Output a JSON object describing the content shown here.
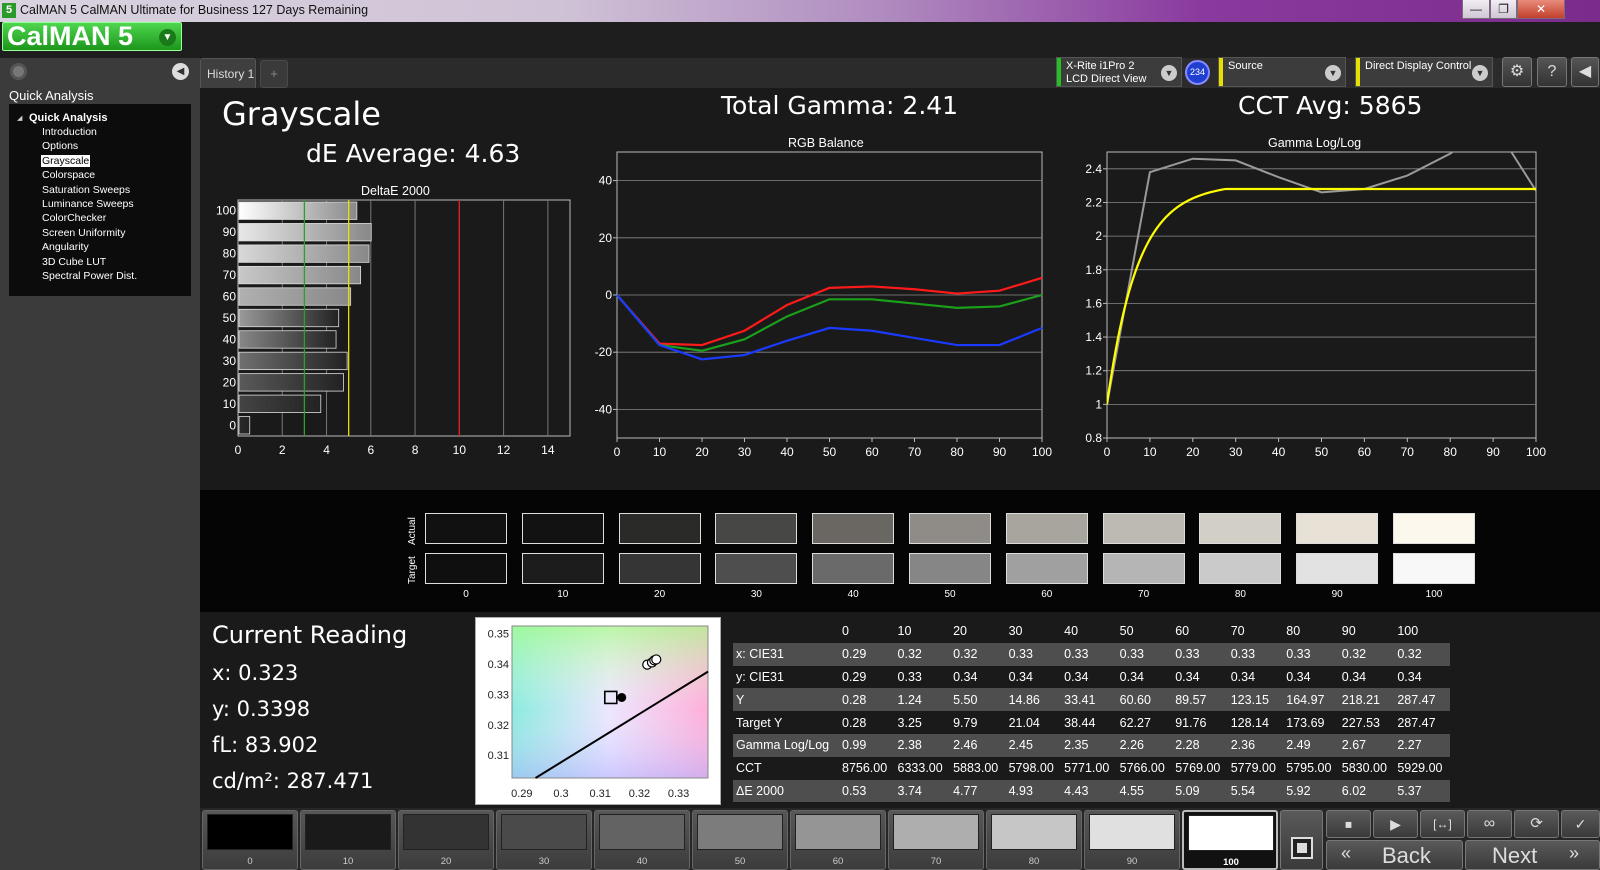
{
  "titlebar": {
    "icon": "5",
    "title": "CalMAN 5 CalMAN Ultimate for Business 127 Days Remaining",
    "minimize": "—",
    "restore": "❐",
    "close": "✕"
  },
  "logo": {
    "text": "CalMAN 5"
  },
  "left": {
    "section_label": "Quick Analysis",
    "tree_root": "Quick Analysis",
    "items": [
      {
        "label": "Introduction"
      },
      {
        "label": "Options"
      },
      {
        "label": "Grayscale"
      },
      {
        "label": "Colorspace"
      },
      {
        "label": "Saturation Sweeps"
      },
      {
        "label": "Luminance Sweeps"
      },
      {
        "label": "ColorChecker"
      },
      {
        "label": "Screen Uniformity"
      },
      {
        "label": "Angularity"
      },
      {
        "label": "3D Cube LUT"
      },
      {
        "label": "Spectral Power Dist."
      }
    ],
    "selected": "Grayscale"
  },
  "tabs": {
    "history": "History 1",
    "add": "+"
  },
  "devices": {
    "meter_line1": "X-Rite i1Pro 2",
    "meter_line2": "LCD Direct View",
    "badge": "234",
    "source": "Source",
    "display": "Direct Display Control",
    "meter_color": "#22c022",
    "source_color": "#e6e000",
    "display_color": "#e6e000"
  },
  "toolbar": {
    "settings_icon": "gear-icon",
    "help": "?",
    "collapse": "◀"
  },
  "main": {
    "page_title": "Grayscale",
    "de_average": "dE Average: 4.63",
    "total_gamma": "Total Gamma: 2.41",
    "cct_avg": "CCT Avg: 5865"
  },
  "deltae_chart": {
    "title": "DeltaE 2000",
    "ylabels": [
      "100",
      "90",
      "80",
      "70",
      "60",
      "50",
      "40",
      "30",
      "20",
      "10",
      "0"
    ],
    "xticks": [
      "0",
      "2",
      "4",
      "6",
      "8",
      "10",
      "12",
      "14"
    ]
  },
  "chart_data": [
    {
      "type": "bar",
      "title": "DeltaE 2000",
      "orientation": "horizontal",
      "categories": [
        "100",
        "90",
        "80",
        "70",
        "60",
        "50",
        "40",
        "30",
        "20",
        "10",
        "0"
      ],
      "values": [
        5.37,
        6.02,
        5.92,
        5.54,
        5.09,
        4.55,
        4.43,
        4.93,
        4.77,
        3.74,
        0.53
      ],
      "xlim": [
        0,
        15
      ],
      "reference_lines": [
        {
          "value": 3,
          "color": "#2ba02b"
        },
        {
          "value": 5,
          "color": "#e6e000"
        },
        {
          "value": 10,
          "color": "#e02020"
        }
      ]
    },
    {
      "type": "line",
      "title": "RGB Balance",
      "x": [
        0,
        10,
        20,
        30,
        40,
        50,
        60,
        70,
        80,
        90,
        100
      ],
      "ylim": [
        -50,
        50
      ],
      "yticks": [
        "40",
        "20",
        "0",
        "-20",
        "-40"
      ],
      "xticks": [
        "0",
        "10",
        "20",
        "30",
        "40",
        "50",
        "60",
        "70",
        "80",
        "90",
        "100"
      ],
      "series": [
        {
          "color": "#ff1a1a",
          "values": [
            0,
            -17,
            -17.5,
            -12.5,
            -3.5,
            2.5,
            3,
            2,
            0.5,
            1.5,
            6
          ]
        },
        {
          "color": "#1aa01a",
          "values": [
            0,
            -17.5,
            -19.5,
            -15.5,
            -7.5,
            -1.5,
            -1.5,
            -3,
            -4.5,
            -4,
            0
          ]
        },
        {
          "color": "#1a3aff",
          "values": [
            0,
            -17.5,
            -22.5,
            -21,
            -16,
            -11.5,
            -12.5,
            -15,
            -17.5,
            -17.5,
            -11.5
          ]
        }
      ]
    },
    {
      "type": "line",
      "title": "Gamma Log/Log",
      "x": [
        0,
        10,
        20,
        30,
        40,
        50,
        60,
        70,
        80,
        90,
        100
      ],
      "ylim": [
        0.8,
        2.5
      ],
      "yticks": [
        "2.4",
        "2.2",
        "2",
        "1.8",
        "1.6",
        "1.4",
        "1.2",
        "1",
        "0.8"
      ],
      "xticks": [
        "0",
        "10",
        "20",
        "30",
        "40",
        "50",
        "60",
        "70",
        "80",
        "90",
        "100"
      ],
      "series": [
        {
          "color": "#9a9a9a",
          "values": [
            1,
            2.38,
            2.46,
            2.45,
            2.35,
            2.26,
            2.28,
            2.36,
            2.49,
            2.67,
            2.27
          ]
        },
        {
          "color": "#ffff00",
          "target_gamma": 2.28
        }
      ]
    }
  ],
  "swatches": {
    "actual_label": "Actual",
    "target_label": "Target",
    "levels": [
      "0",
      "10",
      "20",
      "30",
      "40",
      "50",
      "60",
      "70",
      "80",
      "90",
      "100"
    ],
    "actual": [
      "#111111",
      "#121212",
      "#2a2a28",
      "#474745",
      "#6a6762",
      "#8f8c87",
      "#a8a59f",
      "#bdbab4",
      "#d2cfc6",
      "#e8e2d6",
      "#fdf8ee"
    ],
    "target": [
      "#0f0f0f",
      "#1c1c1c",
      "#353535",
      "#4e4e4e",
      "#6a6a6a",
      "#868686",
      "#a0a0a0",
      "#b5b5b5",
      "#cacaca",
      "#e2e2e2",
      "#f8f8f8"
    ]
  },
  "reading": {
    "title": "Current Reading",
    "x": "x: 0.323",
    "y": "y: 0.3398",
    "fl": "fL: 83.902",
    "cdm": "cd/m²: 287.471"
  },
  "cie": {
    "xticks": [
      "0.29",
      "0.3",
      "0.31",
      "0.32",
      "0.33"
    ],
    "yticks": [
      "0.35",
      "0.34",
      "0.33",
      "0.32",
      "0.31"
    ]
  },
  "table": {
    "headers": [
      "",
      "0",
      "10",
      "20",
      "30",
      "40",
      "50",
      "60",
      "70",
      "80",
      "90",
      "100"
    ],
    "rows": [
      {
        "label": "x: CIE31",
        "values": [
          "0.29",
          "0.32",
          "0.32",
          "0.33",
          "0.33",
          "0.33",
          "0.33",
          "0.33",
          "0.33",
          "0.32",
          "0.32"
        ]
      },
      {
        "label": "y: CIE31",
        "values": [
          "0.29",
          "0.33",
          "0.34",
          "0.34",
          "0.34",
          "0.34",
          "0.34",
          "0.34",
          "0.34",
          "0.34",
          "0.34"
        ]
      },
      {
        "label": "Y",
        "values": [
          "0.28",
          "1.24",
          "5.50",
          "14.86",
          "33.41",
          "60.60",
          "89.57",
          "123.15",
          "164.97",
          "218.21",
          "287.47"
        ]
      },
      {
        "label": "Target Y",
        "values": [
          "0.28",
          "3.25",
          "9.79",
          "21.04",
          "38.44",
          "62.27",
          "91.76",
          "128.14",
          "173.69",
          "227.53",
          "287.47"
        ]
      },
      {
        "label": "Gamma Log/Log",
        "values": [
          "0.99",
          "2.38",
          "2.46",
          "2.45",
          "2.35",
          "2.26",
          "2.28",
          "2.36",
          "2.49",
          "2.67",
          "2.27"
        ]
      },
      {
        "label": "CCT",
        "values": [
          "8756.00",
          "6333.00",
          "5883.00",
          "5798.00",
          "5771.00",
          "5766.00",
          "5769.00",
          "5779.00",
          "5795.00",
          "5830.00",
          "5929.00"
        ]
      },
      {
        "label": "ΔE 2000",
        "values": [
          "0.53",
          "3.74",
          "4.77",
          "4.93",
          "4.43",
          "4.55",
          "5.09",
          "5.54",
          "5.92",
          "6.02",
          "5.37"
        ]
      }
    ]
  },
  "bottom": {
    "levels": [
      "0",
      "10",
      "20",
      "30",
      "40",
      "50",
      "60",
      "70",
      "80",
      "90",
      "100"
    ],
    "colors": [
      "#000000",
      "#1a1a1a",
      "#333333",
      "#4a4a4a",
      "#636363",
      "#7c7c7c",
      "#959595",
      "#aeaeae",
      "#c6c6c6",
      "#e0e0e0",
      "#ffffff"
    ],
    "selected": "100",
    "back": "Back",
    "next": "Next"
  }
}
